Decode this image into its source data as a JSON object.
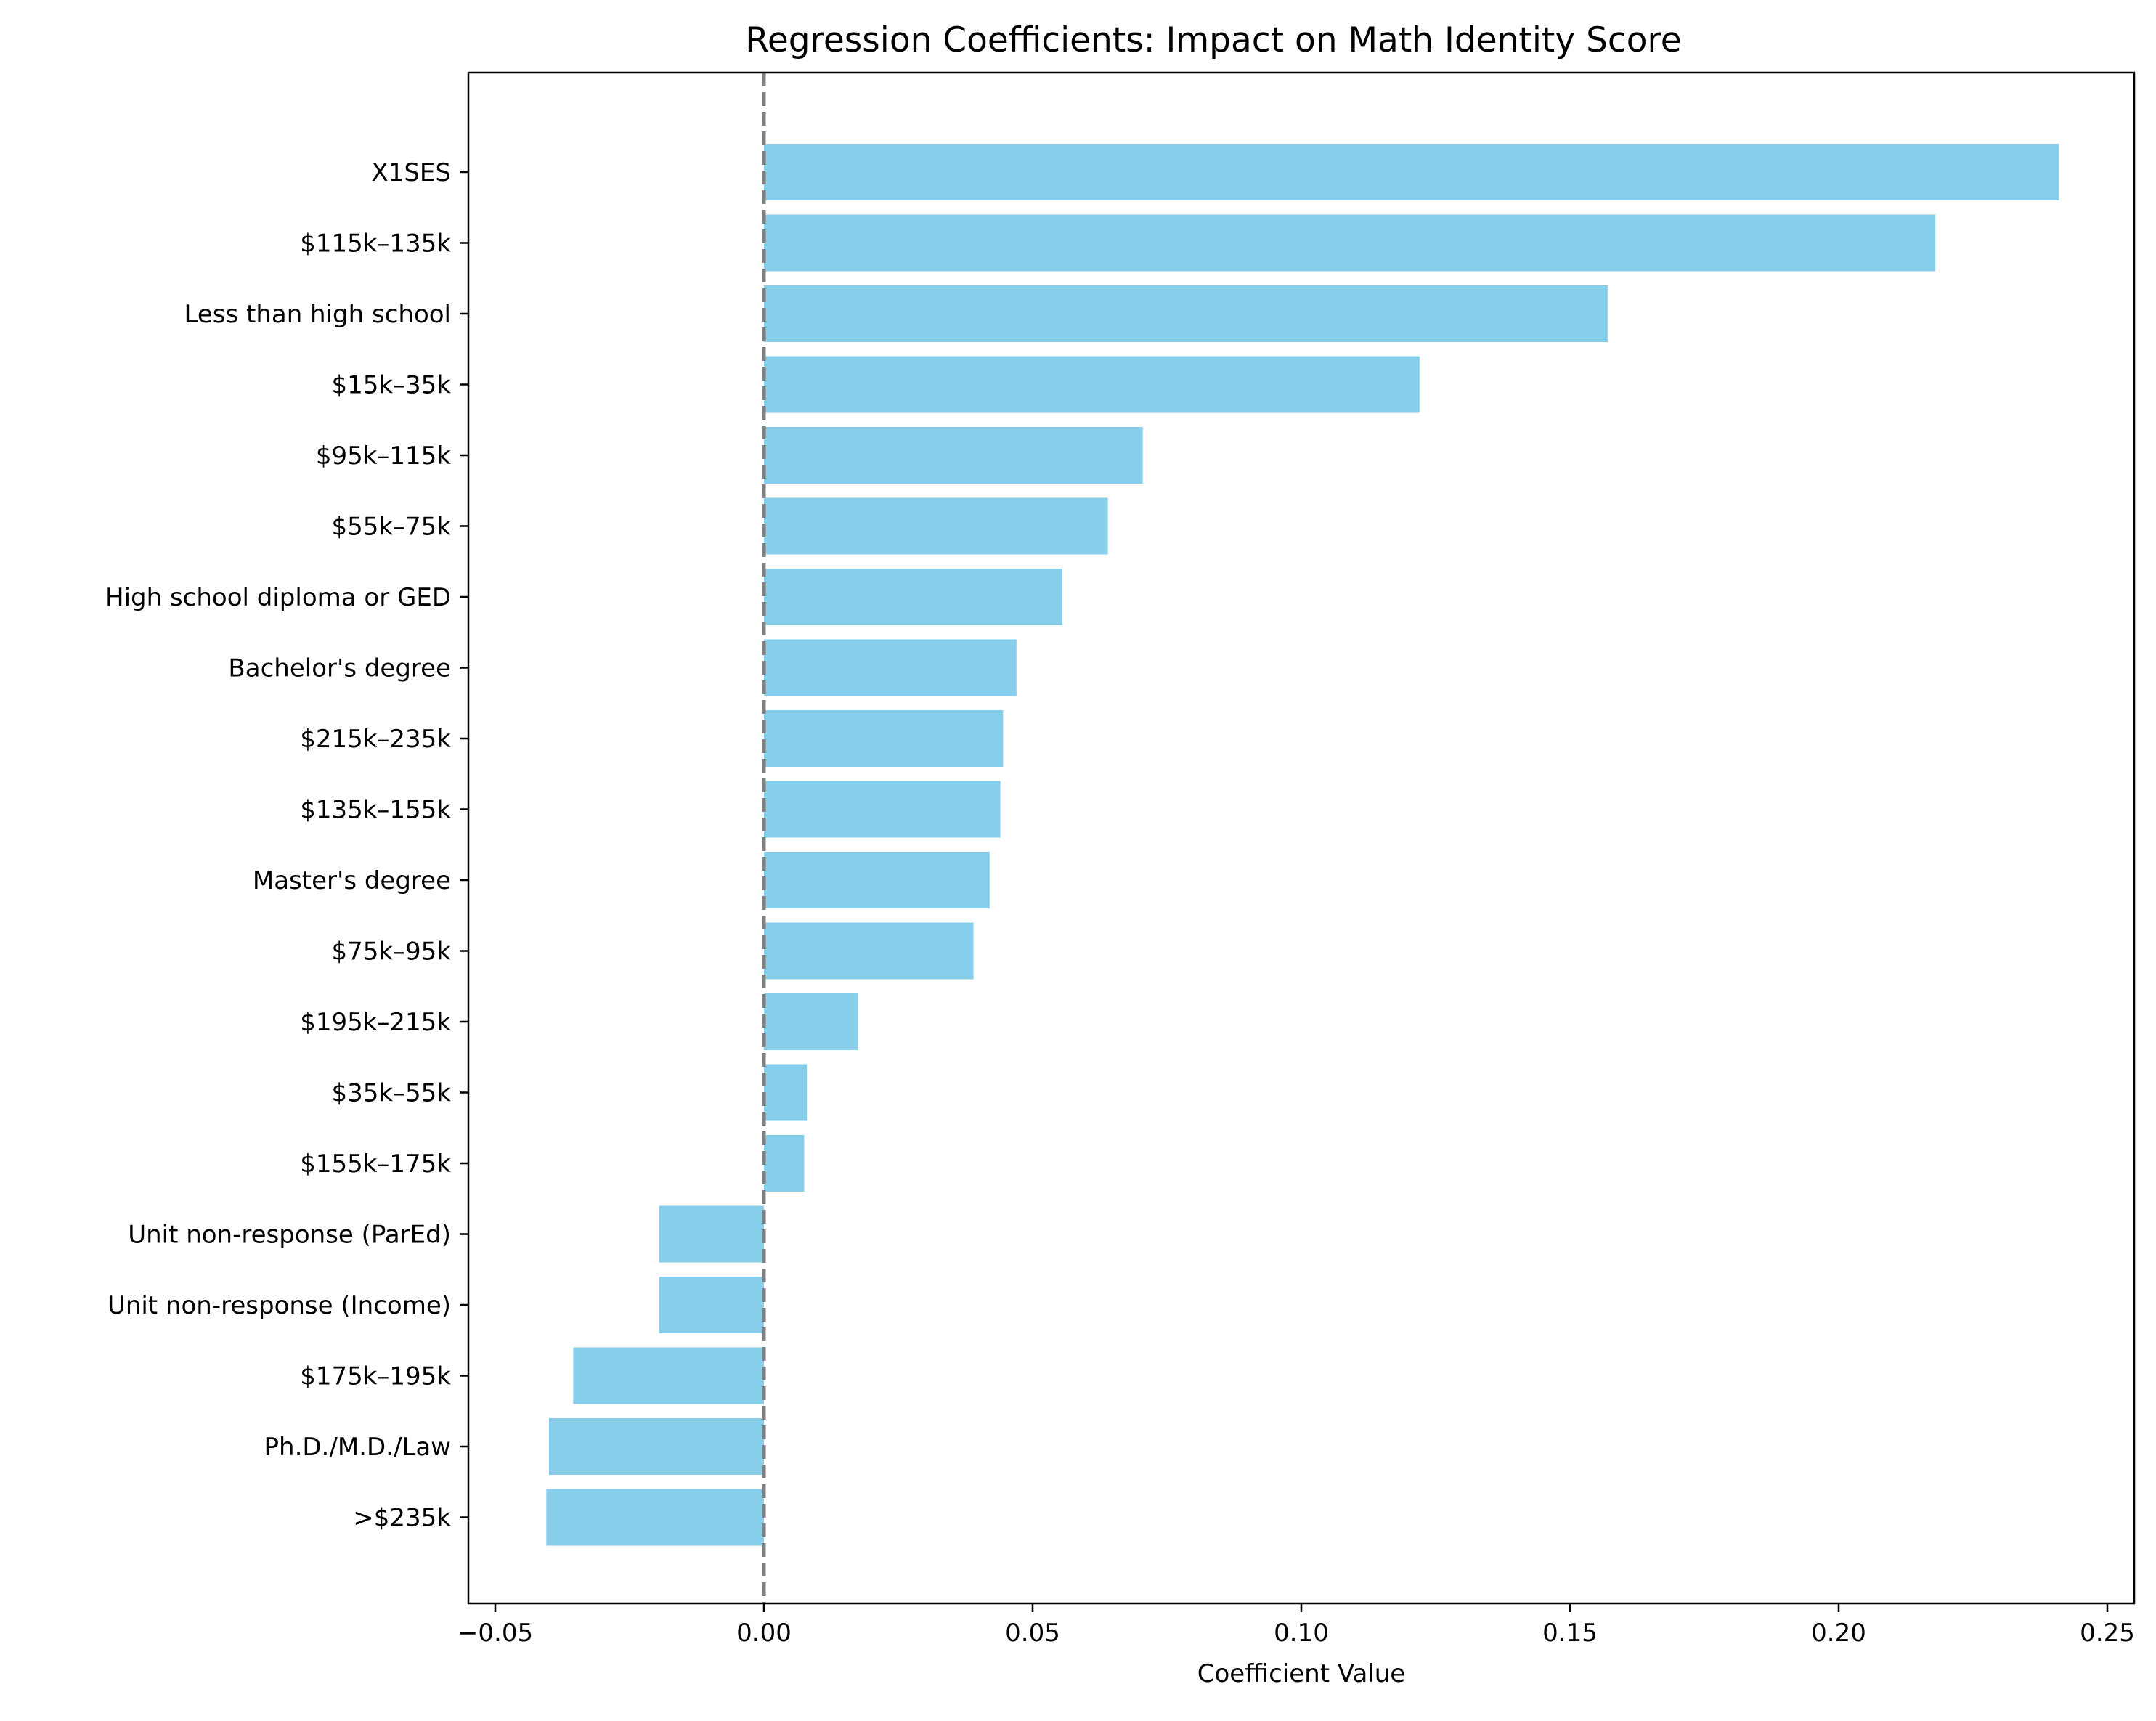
{
  "chart_data": {
    "type": "bar",
    "orientation": "horizontal",
    "title": "Regression Coefficients: Impact on Math Identity Score",
    "xlabel": "Coefficient Value",
    "ylabel": "",
    "xlim": [
      -0.055,
      0.255
    ],
    "x_ticks": [
      -0.05,
      0.0,
      0.05,
      0.1,
      0.15,
      0.2,
      0.25
    ],
    "x_tick_labels": [
      "−0.05",
      "0.00",
      "0.05",
      "0.10",
      "0.15",
      "0.20",
      "0.25"
    ],
    "reference_line": {
      "x": 0.0,
      "style": "dashed",
      "color": "#808080"
    },
    "grid": false,
    "bar_color": "#87CEEB",
    "categories": [
      "X1SES",
      "$115k–135k",
      "Less than high school",
      "$15k–35k",
      "$95k–115k",
      "$55k–75k",
      "High school diploma or GED",
      "Bachelor's degree",
      "$215k–235k",
      "$135k–155k",
      "Master's degree",
      "$75k–95k",
      "$195k–215k",
      "$35k–55k",
      "$155k–175k",
      "Unit non-response (ParEd)",
      "Unit non-response (Income)",
      "$175k–195k",
      "Ph.D./M.D./Law",
      ">$235k"
    ],
    "values": [
      0.241,
      0.218,
      0.157,
      0.122,
      0.0705,
      0.064,
      0.0555,
      0.047,
      0.0445,
      0.044,
      0.042,
      0.039,
      0.0175,
      0.008,
      0.0075,
      -0.0195,
      -0.0195,
      -0.0355,
      -0.04,
      -0.0405
    ]
  }
}
